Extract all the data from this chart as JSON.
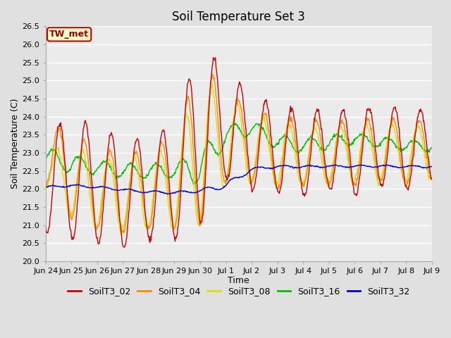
{
  "title": "Soil Temperature Set 3",
  "xlabel": "Time",
  "ylabel": "Soil Temperature (C)",
  "ylim": [
    20.0,
    26.5
  ],
  "yticks": [
    20.0,
    20.5,
    21.0,
    21.5,
    22.0,
    22.5,
    23.0,
    23.5,
    24.0,
    24.5,
    25.0,
    25.5,
    26.0,
    26.5
  ],
  "colors": {
    "SoilT3_02": "#CC0000",
    "SoilT3_04": "#FF8800",
    "SoilT3_08": "#DDDD00",
    "SoilT3_16": "#00BB00",
    "SoilT3_32": "#0000CC"
  },
  "series_labels": [
    "SoilT3_02",
    "SoilT3_04",
    "SoilT3_08",
    "SoilT3_16",
    "SoilT3_32"
  ],
  "annotation_label": "TW_met",
  "annotation_facecolor": "#FFFFCC",
  "annotation_edgecolor": "#CC0000",
  "annotation_textcolor": "#990000",
  "fig_facecolor": "#E0E0E0",
  "ax_facecolor": "#EBEBEB",
  "grid_color": "#FFFFFF",
  "title_fontsize": 12,
  "axis_label_fontsize": 9,
  "tick_fontsize": 8,
  "legend_fontsize": 9,
  "line_width": 1.0,
  "day_labels": [
    "Jun 24",
    "Jun 25",
    "Jun 26",
    "Jun 27",
    "Jun 28",
    "Jun 29",
    "Jun 30",
    "Jul 1",
    "Jul 2",
    "Jul 3",
    "Jul 4",
    "Jul 5",
    "Jul 6",
    "Jul 7",
    "Jul 8",
    "Jul 9"
  ]
}
